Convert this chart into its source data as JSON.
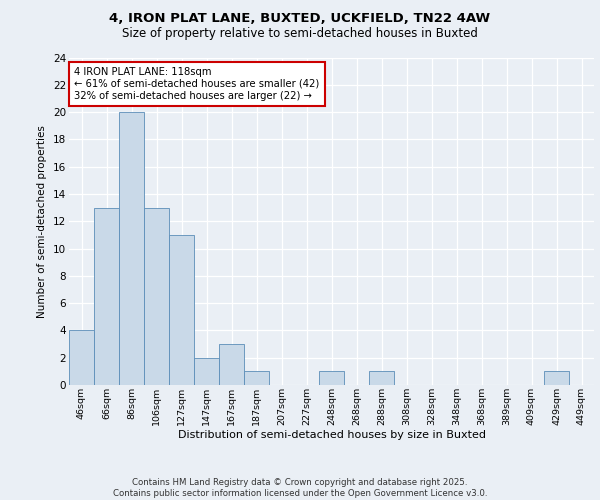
{
  "title_line1": "4, IRON PLAT LANE, BUXTED, UCKFIELD, TN22 4AW",
  "title_line2": "Size of property relative to semi-detached houses in Buxted",
  "xlabel": "Distribution of semi-detached houses by size in Buxted",
  "ylabel": "Number of semi-detached properties",
  "footer": "Contains HM Land Registry data © Crown copyright and database right 2025.\nContains public sector information licensed under the Open Government Licence v3.0.",
  "bin_labels": [
    "46sqm",
    "66sqm",
    "86sqm",
    "106sqm",
    "127sqm",
    "147sqm",
    "167sqm",
    "187sqm",
    "207sqm",
    "227sqm",
    "248sqm",
    "268sqm",
    "288sqm",
    "308sqm",
    "328sqm",
    "348sqm",
    "368sqm",
    "389sqm",
    "409sqm",
    "429sqm",
    "449sqm"
  ],
  "values": [
    4,
    13,
    20,
    13,
    11,
    2,
    3,
    1,
    0,
    0,
    1,
    0,
    1,
    0,
    0,
    0,
    0,
    0,
    0,
    1,
    0
  ],
  "bar_color": "#c9d9e8",
  "bar_edge_color": "#5b8db8",
  "annotation_text": "4 IRON PLAT LANE: 118sqm\n← 61% of semi-detached houses are smaller (42)\n32% of semi-detached houses are larger (22) →",
  "annotation_box_color": "#ffffff",
  "annotation_box_edge_color": "#cc0000",
  "ylim": [
    0,
    24
  ],
  "yticks": [
    0,
    2,
    4,
    6,
    8,
    10,
    12,
    14,
    16,
    18,
    20,
    22,
    24
  ],
  "bg_color": "#eaeff5",
  "plot_bg_color": "#eaeff5",
  "grid_color": "#ffffff"
}
